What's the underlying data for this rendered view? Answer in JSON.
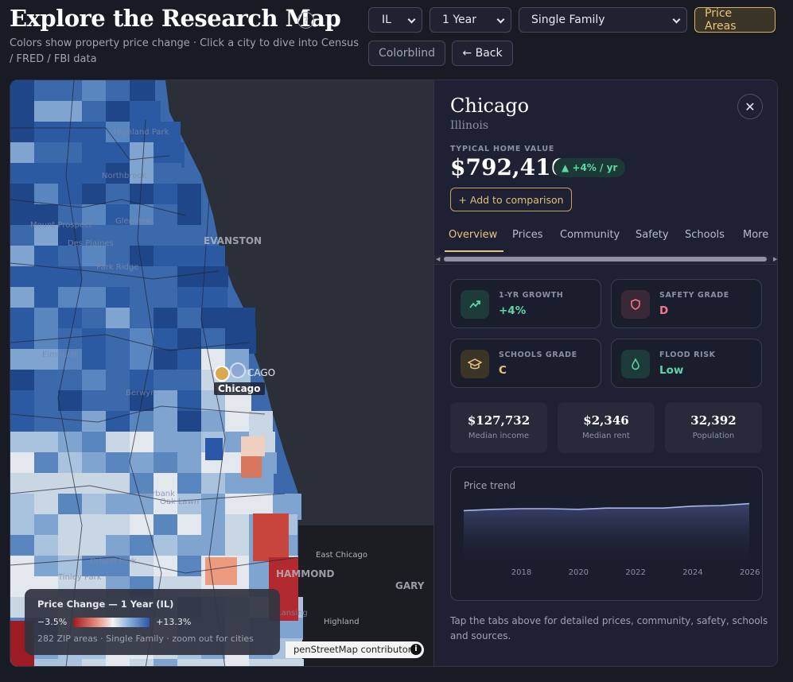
{
  "header": {
    "title": "Explore the Research Map",
    "help_icon": "?",
    "subtitle": "Colors show property price change  ·  Click a city to dive into Census / FRED / FBI data"
  },
  "controls": {
    "state": "IL",
    "period": "1 Year",
    "property_type": "Single Family",
    "price_areas": "Price Areas",
    "colorblind": "Colorblind",
    "back": "← Back"
  },
  "map": {
    "labels": [
      "Highland Park",
      "Northbrook",
      "Glenview",
      "Mount Prospect",
      "Des Plaines",
      "Park Ridge",
      "EVANSTON",
      "Elmhurst",
      "Berwyn",
      "Burbank",
      "Oak Lawn",
      "Orland Park",
      "Tinley Park",
      "HAMMOND",
      "East Chicago",
      "GARY",
      "Highland",
      "Lansing"
    ],
    "marker_label": "Chicago",
    "marker_caption": "CAGO",
    "legend": {
      "title": "Price Change — 1 Year (IL)",
      "min": "−3.5%",
      "max": "+13.3%",
      "footer": "282 ZIP areas · Single Family · zoom out for cities"
    },
    "attribution": "penStreetMap contributors",
    "info_icon": "i"
  },
  "panel": {
    "city": "Chicago",
    "state": "Illinois",
    "close_icon": "✕",
    "typical_home_value_label": "TYPICAL HOME VALUE",
    "typical_home_value": "$792,416",
    "growth_pill": "▲ +4% / yr",
    "compare_button": "+ Add to comparison",
    "tabs": [
      "Overview",
      "Prices",
      "Community",
      "Safety",
      "Schools",
      "More"
    ],
    "stats": [
      {
        "label": "1-YR GROWTH",
        "value": "+4%",
        "icon": "trend-up-icon",
        "color": "#5fd6a4"
      },
      {
        "label": "SAFETY GRADE",
        "value": "D",
        "icon": "shield-icon",
        "color": "#f07a8c"
      },
      {
        "label": "SCHOOLS GRADE",
        "value": "C",
        "icon": "graduation-cap-icon",
        "color": "#e9c47d"
      },
      {
        "label": "FLOOD RISK",
        "value": "Low",
        "icon": "droplet-icon",
        "color": "#5fd6a4"
      }
    ],
    "minis": [
      {
        "value": "$127,732",
        "label": "Median income"
      },
      {
        "value": "$2,346",
        "label": "Median rent"
      },
      {
        "value": "32,392",
        "label": "Population"
      }
    ],
    "trend": {
      "title": "Price trend",
      "years": [
        "2018",
        "2020",
        "2022",
        "2024",
        "2026"
      ]
    },
    "footer": "Tap the tabs above for detailed prices, community, safety, schools and sources."
  },
  "chart_data": {
    "type": "area",
    "title": "Price trend",
    "x": [
      "2016",
      "2017",
      "2018",
      "2019",
      "2020",
      "2021",
      "2022",
      "2023",
      "2024",
      "2025",
      "2026"
    ],
    "values": [
      0.82,
      0.84,
      0.85,
      0.85,
      0.84,
      0.86,
      0.86,
      0.86,
      0.89,
      0.9,
      0.93
    ],
    "xlabel": "",
    "ylabel": ""
  }
}
